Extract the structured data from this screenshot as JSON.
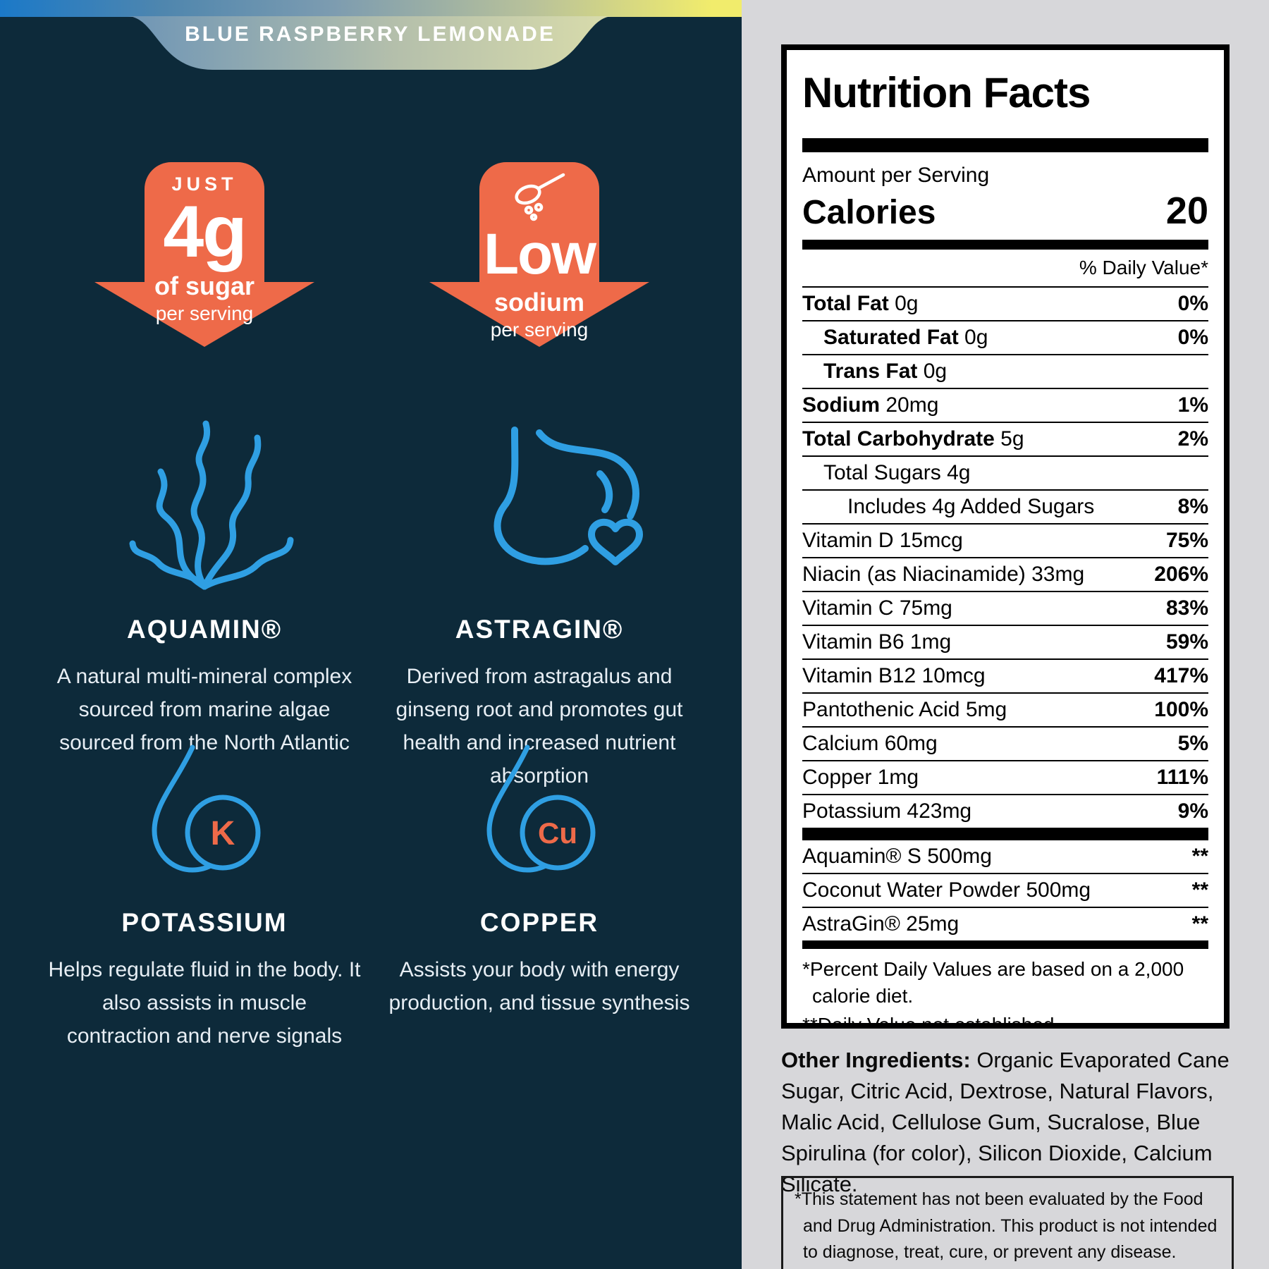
{
  "left_panel": {
    "flavor_banner": "BLUE RASPBERRY LEMONADE",
    "arrows": [
      {
        "topline": "JUST",
        "big": "4g",
        "bold_sub": "of sugar",
        "sub": "per serving"
      },
      {
        "icon": "scoop-powder-icon",
        "big": "Low",
        "bold_sub": "sodium",
        "sub": "per serving"
      }
    ],
    "features": [
      {
        "icon": "seaweed-icon",
        "title": "AQUAMIN®",
        "desc": "A natural multi-mineral complex sourced from marine algae sourced from the North Atlantic"
      },
      {
        "icon": "stomach-heart-icon",
        "title": "ASTRAGIN®",
        "desc": "Derived from astragalus and ginseng root and promotes gut health and increased nutrient absorption"
      },
      {
        "icon": "droplet-icon",
        "symbol": "K",
        "title": "POTASSIUM",
        "desc": "Helps regulate fluid in the body. It also assists in muscle contraction and nerve signals"
      },
      {
        "icon": "droplet-icon",
        "symbol": "Cu",
        "title": "COPPER",
        "desc": "Assists your body with energy production, and tissue synthesis"
      }
    ]
  },
  "label": {
    "title": "Nutrition Facts",
    "amount_per_serving": "Amount per Serving",
    "calories_label": "Calories",
    "calories_value": "20",
    "dv_header": "% Daily Value*",
    "rows": [
      {
        "bold": "Total Fat",
        "rest": " 0g",
        "dv": "0%",
        "indent": 0
      },
      {
        "bold": "Saturated Fat",
        "rest": " 0g",
        "dv": "0%",
        "indent": 1
      },
      {
        "bold": "Trans Fat",
        "rest": " 0g",
        "dv": "",
        "indent": 1
      },
      {
        "bold": "Sodium",
        "rest": " 20mg",
        "dv": "1%",
        "indent": 0
      },
      {
        "bold": "Total Carbohydrate",
        "rest": " 5g",
        "dv": "2%",
        "indent": 0
      },
      {
        "bold": "",
        "rest": "Total Sugars 4g",
        "dv": "",
        "indent": 1
      },
      {
        "bold": "",
        "rest": "Includes 4g Added Sugars",
        "dv": "8%",
        "indent": 2
      },
      {
        "bold": "",
        "rest": "Vitamin D 15mcg",
        "dv": "75%",
        "indent": 0
      },
      {
        "bold": "",
        "rest": "Niacin (as Niacinamide) 33mg",
        "dv": "206%",
        "indent": 0
      },
      {
        "bold": "",
        "rest": "Vitamin C 75mg",
        "dv": "83%",
        "indent": 0
      },
      {
        "bold": "",
        "rest": "Vitamin B6 1mg",
        "dv": "59%",
        "indent": 0
      },
      {
        "bold": "",
        "rest": "Vitamin B12 10mcg",
        "dv": "417%",
        "indent": 0
      },
      {
        "bold": "",
        "rest": "Pantothenic Acid 5mg",
        "dv": "100%",
        "indent": 0
      },
      {
        "bold": "",
        "rest": "Calcium 60mg",
        "dv": "5%",
        "indent": 0
      },
      {
        "bold": "",
        "rest": "Copper 1mg",
        "dv": "111%",
        "indent": 0
      },
      {
        "bold": "",
        "rest": "Potassium 423mg",
        "dv": "9%",
        "indent": 0
      }
    ],
    "supplement_rows": [
      {
        "rest": "Aquamin® S 500mg",
        "dv": "**"
      },
      {
        "rest": "Coconut Water Powder 500mg",
        "dv": "**"
      },
      {
        "rest": "AstraGin® 25mg",
        "dv": "**"
      }
    ],
    "footnotes": [
      "*Percent Daily Values are based on a 2,000 calorie diet.",
      "**Daily Value not established."
    ]
  },
  "other_ingredients": {
    "label": "Other Ingredients:",
    "text": " Organic Evaporated Cane Sugar, Citric Acid, Dextrose, Natural Flavors, Malic Acid, Cellulose Gum, Sucralose, Blue Spirulina (for color), Silicon Dioxide, Calcium Silicate."
  },
  "disclaimer": "*This statement has not been evaluated by the Food and Drug Administration. This product is not intended to diagnose, treat, cure, or prevent any disease.",
  "colors": {
    "navy_background": "#0d2a3a",
    "arrow_orange": "#ee6a49",
    "icon_blue": "#2f9fe3",
    "panel_gray": "#d7d7da",
    "banner_gradient_start": "#6e95b6",
    "banner_gradient_end": "#d9dcab",
    "top_bar_gradient_start": "#1b79c8",
    "top_bar_gradient_end": "#f1ec6c"
  }
}
